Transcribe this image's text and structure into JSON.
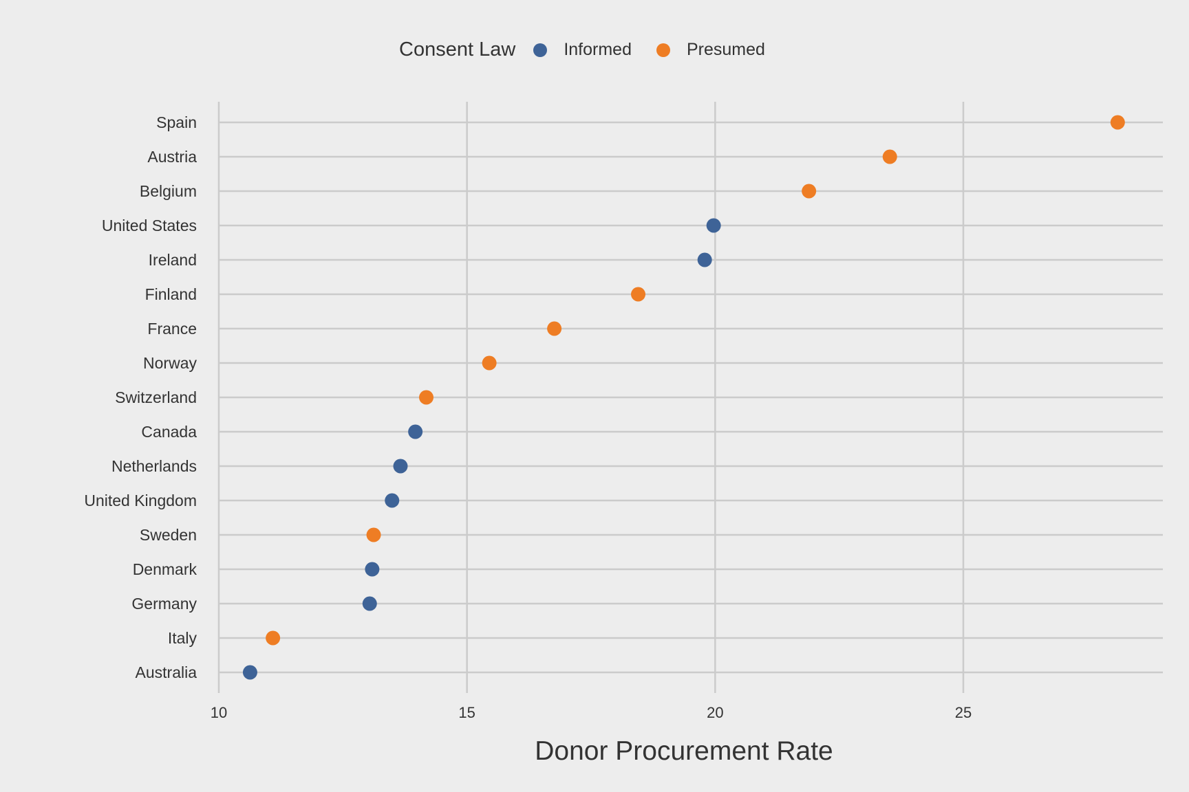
{
  "legend": {
    "title": "Consent Law",
    "items": [
      {
        "label": "Informed",
        "color": "#3e6397"
      },
      {
        "label": "Presumed",
        "color": "#ee7d24"
      }
    ]
  },
  "chart_data": {
    "type": "scatter",
    "xlabel": "Donor Procurement Rate",
    "ylabel": "",
    "xlim": [
      10,
      28.9
    ],
    "xticks": [
      10,
      15,
      20,
      25
    ],
    "grid": true,
    "legend_position": "top",
    "categories": [
      "Spain",
      "Austria",
      "Belgium",
      "United States",
      "Ireland",
      "Finland",
      "France",
      "Norway",
      "Switzerland",
      "Canada",
      "Netherlands",
      "United Kingdom",
      "Sweden",
      "Denmark",
      "Germany",
      "Italy",
      "Australia"
    ],
    "series": [
      {
        "name": "Informed",
        "color": "#3e6397",
        "points": [
          {
            "country": "United States",
            "value": 19.97
          },
          {
            "country": "Ireland",
            "value": 19.79
          },
          {
            "country": "Canada",
            "value": 13.96
          },
          {
            "country": "Netherlands",
            "value": 13.66
          },
          {
            "country": "United Kingdom",
            "value": 13.49
          },
          {
            "country": "Denmark",
            "value": 13.09
          },
          {
            "country": "Germany",
            "value": 13.04
          },
          {
            "country": "Australia",
            "value": 10.63
          }
        ]
      },
      {
        "name": "Presumed",
        "color": "#ee7d24",
        "points": [
          {
            "country": "Spain",
            "value": 28.11
          },
          {
            "country": "Austria",
            "value": 23.52
          },
          {
            "country": "Belgium",
            "value": 21.89
          },
          {
            "country": "Finland",
            "value": 18.45
          },
          {
            "country": "France",
            "value": 16.76
          },
          {
            "country": "Norway",
            "value": 15.45
          },
          {
            "country": "Switzerland",
            "value": 14.18
          },
          {
            "country": "Sweden",
            "value": 13.12
          },
          {
            "country": "Italy",
            "value": 11.09
          }
        ]
      }
    ]
  }
}
